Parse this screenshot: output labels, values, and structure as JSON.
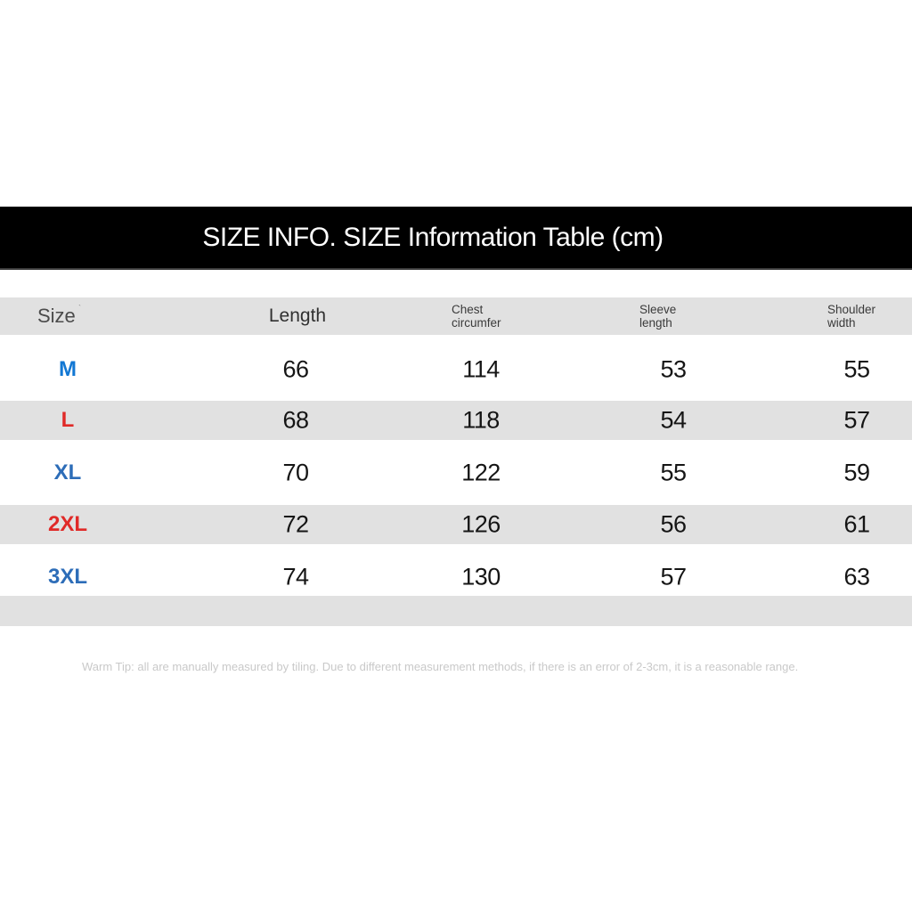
{
  "banner": {
    "title": "SIZE INFO. SIZE Information Table (cm)",
    "bg_color": "#000000",
    "text_color": "#ffffff"
  },
  "table": {
    "unit": "cm",
    "stripe_color": "#e1e1e1",
    "header": {
      "size": "Size",
      "size_mark": "ˋ",
      "length": "Length",
      "chest_line1": "Chest",
      "chest_line2": "circumfer",
      "sleeve_line1": "Sleeve",
      "sleeve_line2": "length",
      "shoulder_line1": "Shoulder",
      "shoulder_line2": "width"
    },
    "rows": [
      {
        "size": "M",
        "size_color": "#1277d3",
        "length": "66",
        "chest": "114",
        "sleeve": "53",
        "shoulder": "55"
      },
      {
        "size": "L",
        "size_color": "#e02a28",
        "length": "68",
        "chest": "118",
        "sleeve": "54",
        "shoulder": "57"
      },
      {
        "size": "XL",
        "size_color": "#2d6db8",
        "length": "70",
        "chest": "122",
        "sleeve": "55",
        "shoulder": "59"
      },
      {
        "size": "2XL",
        "size_color": "#e02a28",
        "length": "72",
        "chest": "126",
        "sleeve": "56",
        "shoulder": "61"
      },
      {
        "size": "3XL",
        "size_color": "#2d6db8",
        "length": "74",
        "chest": "130",
        "sleeve": "57",
        "shoulder": "63"
      }
    ]
  },
  "footer": {
    "warm_tip": "Warm Tip: all are manually measured by tiling. Due to different measurement methods, if there is an error of 2-3cm, it is a reasonable range."
  }
}
